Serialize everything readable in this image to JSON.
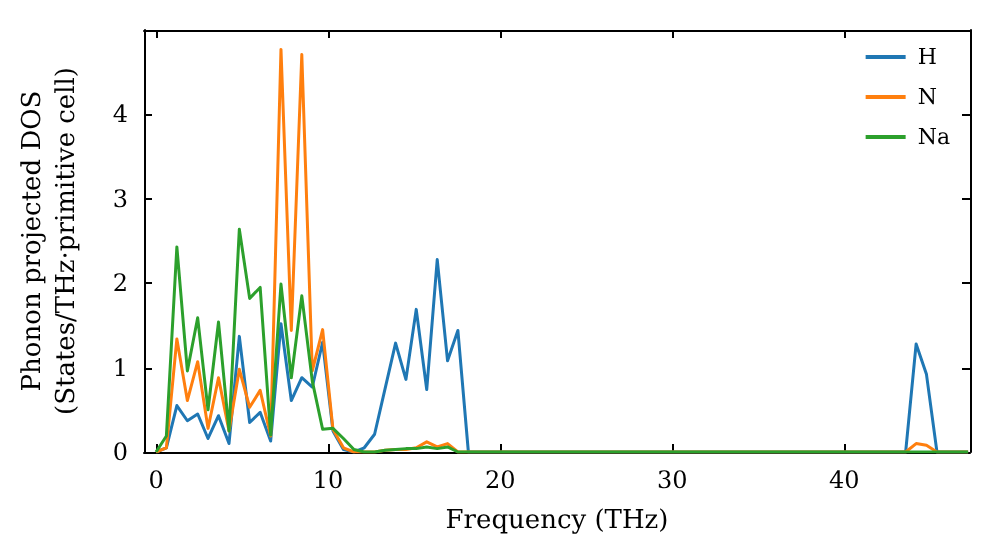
{
  "chart_data": {
    "type": "line",
    "xlabel": "Frequency (THz)",
    "ylabel": "Phonon projected DOS\n(States/THz·primitive cell)",
    "x": [
      0,
      0.6,
      1.21,
      1.82,
      2.42,
      3.02,
      3.63,
      4.24,
      4.84,
      5.44,
      6.05,
      6.66,
      7.26,
      7.86,
      8.47,
      9.08,
      9.68,
      10.28,
      10.89,
      11.5,
      12.1,
      12.7,
      13.31,
      13.92,
      14.52,
      15.12,
      15.73,
      16.34,
      16.94,
      17.54,
      18.15,
      18.76,
      42.96,
      43.56,
      44.17,
      44.77,
      45.38,
      47.19
    ],
    "series": [
      {
        "name": "H",
        "color": "#1f77b4",
        "values": [
          0,
          0.05,
          0.55,
          0.37,
          0.45,
          0.16,
          0.43,
          0.1,
          1.37,
          0.35,
          0.47,
          0.13,
          1.52,
          0.61,
          0.88,
          0.77,
          1.3,
          0.25,
          0.03,
          0,
          0.05,
          0.21,
          0.75,
          1.29,
          0.86,
          1.69,
          0.74,
          2.28,
          1.08,
          1.44,
          0,
          0,
          0,
          0,
          1.28,
          0.92,
          0,
          0
        ]
      },
      {
        "name": "N",
        "color": "#ff7f0e",
        "values": [
          0,
          0.05,
          1.34,
          0.61,
          1.07,
          0.28,
          0.88,
          0.25,
          0.98,
          0.53,
          0.73,
          0.19,
          4.77,
          1.44,
          4.71,
          0.96,
          1.45,
          0.27,
          0.05,
          0,
          0,
          0,
          0.02,
          0.03,
          0.03,
          0.05,
          0.12,
          0.06,
          0.1,
          0,
          0,
          0,
          0,
          0,
          0.1,
          0.08,
          0,
          0
        ]
      },
      {
        "name": "Na",
        "color": "#2ca02c",
        "values": [
          0,
          0.19,
          2.43,
          0.96,
          1.59,
          0.5,
          1.54,
          0.25,
          2.64,
          1.82,
          1.95,
          0.2,
          1.99,
          0.88,
          1.85,
          0.84,
          0.27,
          0.28,
          0.16,
          0.03,
          0,
          0,
          0.02,
          0.03,
          0.04,
          0.04,
          0.06,
          0.04,
          0.06,
          0,
          0,
          0,
          0,
          0,
          0,
          0,
          0,
          0
        ]
      }
    ],
    "xlim": [
      -0.7,
      47.3
    ],
    "xticks": [
      0,
      10,
      20,
      30,
      40
    ],
    "ylim": [
      0,
      5
    ],
    "yticks": [
      0,
      1,
      2,
      3,
      4
    ],
    "legend": "top right",
    "grid": false
  }
}
